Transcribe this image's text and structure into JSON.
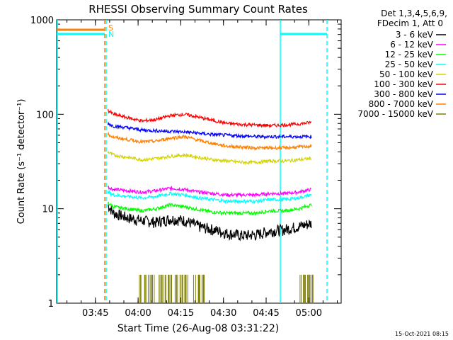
{
  "chart_data": {
    "type": "line",
    "title": "RHESSI Observing Summary Count Rates",
    "xlabel": "Start Time (26-Aug-08 03:31:22)",
    "ylabel": "Count Rate (s⁻¹ detector⁻¹)",
    "y_scale": "log",
    "ylim": [
      1,
      1000
    ],
    "xlim_minutes": [
      0,
      100
    ],
    "x_ticks": [
      "03:45",
      "04:00",
      "04:15",
      "04:30",
      "04:45",
      "05:00"
    ],
    "y_ticks": [
      "1",
      "10",
      "100",
      "1000"
    ],
    "legend_header": [
      "Det 1,3,4,5,6,9,",
      "FDecim 1, Att 0"
    ],
    "legend_position": "right",
    "flag_labels": {
      "s": "S",
      "n": "N"
    },
    "footer_date": "15-Oct-2021 08:15",
    "series": [
      {
        "name": "3 - 6 keV",
        "color": "#000000",
        "x": [
          18,
          20,
          25,
          30,
          35,
          40,
          45,
          50,
          55,
          60,
          65,
          70,
          75,
          80,
          85,
          89.5
        ],
        "y": [
          11,
          9,
          8,
          7.5,
          7.2,
          7.8,
          7.5,
          6.5,
          6,
          5.5,
          5.2,
          5.3,
          5.8,
          6,
          6.5,
          7
        ]
      },
      {
        "name": "6 - 12 keV",
        "color": "#ff00ff",
        "x": [
          18,
          20,
          25,
          30,
          35,
          40,
          45,
          50,
          55,
          60,
          65,
          70,
          75,
          80,
          85,
          89.5
        ],
        "y": [
          17,
          16,
          15.5,
          15,
          15.5,
          16.5,
          16,
          15,
          14.5,
          14,
          14,
          14,
          14.5,
          14.5,
          15,
          16
        ]
      },
      {
        "name": "12 - 25 keV",
        "color": "#00ff00",
        "x": [
          18,
          20,
          25,
          30,
          35,
          40,
          45,
          50,
          55,
          60,
          65,
          70,
          75,
          80,
          85,
          89.5
        ],
        "y": [
          11.5,
          10.5,
          10,
          9.5,
          10,
          11,
          10.5,
          9.8,
          9.2,
          9,
          9,
          9,
          9.5,
          9.5,
          10,
          11
        ]
      },
      {
        "name": "25 - 50 keV",
        "color": "#00ffff",
        "x": [
          18,
          20,
          25,
          30,
          35,
          40,
          45,
          50,
          55,
          60,
          65,
          70,
          75,
          80,
          85,
          89.5
        ],
        "y": [
          15,
          14,
          13.5,
          13,
          13.5,
          14.5,
          14,
          13,
          12.5,
          12,
          12,
          12,
          12.5,
          12.5,
          13,
          14
        ]
      },
      {
        "name": "50 - 100 keV",
        "color": "#d4d400",
        "x": [
          18,
          20,
          25,
          30,
          35,
          40,
          45,
          50,
          55,
          60,
          65,
          70,
          75,
          80,
          85,
          89.5
        ],
        "y": [
          40,
          37,
          35,
          33,
          34,
          36,
          37,
          35,
          33,
          32,
          31,
          31,
          32,
          32,
          33,
          34
        ]
      },
      {
        "name": "100 - 300 keV",
        "color": "#ff0000",
        "x": [
          18,
          20,
          25,
          30,
          35,
          40,
          45,
          50,
          55,
          60,
          65,
          70,
          75,
          80,
          85,
          89.5
        ],
        "y": [
          110,
          100,
          92,
          85,
          88,
          97,
          100,
          93,
          86,
          80,
          78,
          77,
          76,
          77,
          79,
          82
        ]
      },
      {
        "name": "300 - 800 keV",
        "color": "#0000ff",
        "x": [
          18,
          20,
          25,
          30,
          35,
          40,
          45,
          50,
          55,
          60,
          65,
          70,
          75,
          80,
          85,
          89.5
        ],
        "y": [
          80,
          75,
          72,
          68,
          67,
          66,
          65,
          63,
          61,
          60,
          59,
          58,
          58,
          58,
          58,
          58
        ]
      },
      {
        "name": "800 - 7000 keV",
        "color": "#ff8000",
        "x": [
          18,
          20,
          25,
          30,
          35,
          40,
          45,
          50,
          55,
          60,
          65,
          70,
          75,
          80,
          85,
          89.5
        ],
        "y": [
          62,
          57,
          54,
          51,
          52,
          56,
          58,
          53,
          49,
          46,
          45,
          44,
          44,
          44,
          45,
          46
        ]
      },
      {
        "name": "7000 - 15000 keV",
        "color": "#808000",
        "x": [
          29,
          32,
          35,
          38,
          40,
          42,
          45,
          48,
          50,
          85,
          87,
          88.5
        ],
        "y": [
          2,
          2,
          2,
          2,
          2,
          2,
          2,
          2,
          2,
          2,
          2,
          2
        ]
      }
    ]
  }
}
